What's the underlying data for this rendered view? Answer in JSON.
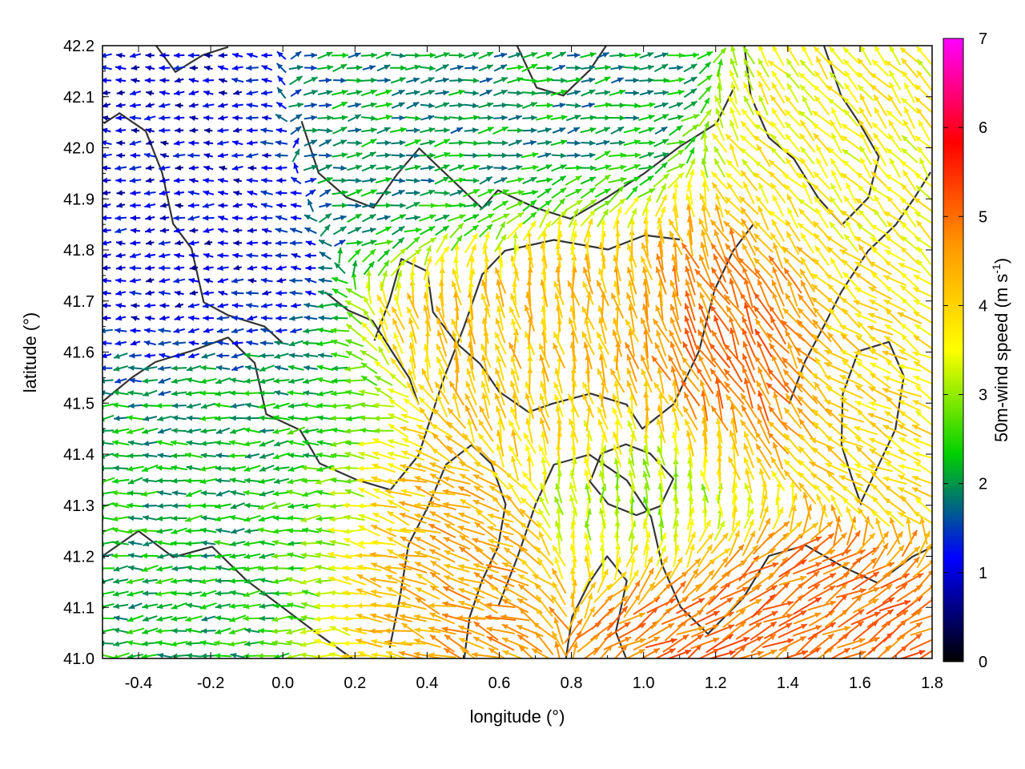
{
  "chart_data": {
    "type": "vector-field",
    "xlabel": "longitude (°)",
    "ylabel": "latitude (°)",
    "xlim": [
      -0.5,
      1.8
    ],
    "ylim": [
      41.0,
      42.2
    ],
    "xticks": [
      "-0.4",
      "-0.2",
      "0.0",
      "0.2",
      "0.4",
      "0.6",
      "0.8",
      "1.0",
      "1.2",
      "1.4",
      "1.6",
      "1.8"
    ],
    "yticks": [
      "41.0",
      "41.1",
      "41.2",
      "41.3",
      "41.4",
      "41.5",
      "41.6",
      "41.7",
      "41.8",
      "41.9",
      "42.0",
      "42.1",
      "42.2"
    ],
    "grid": true,
    "colorbar": {
      "label_main": "50m-wind speed (m s",
      "label_sup": "-1",
      "label_close": ")",
      "range": [
        0,
        7
      ],
      "ticks": [
        "0",
        "1",
        "2",
        "3",
        "4",
        "5",
        "6",
        "7"
      ],
      "stops": [
        "#000000",
        "#0000ff",
        "#00d000",
        "#ffff00",
        "#ff9900",
        "#ff0000",
        "#ff00ff"
      ]
    },
    "wind_regions": [
      {
        "lon": [
          -0.5,
          0.0
        ],
        "lat": [
          41.6,
          42.2
        ],
        "speed": 1.0,
        "direction_deg": 180
      },
      {
        "lon": [
          -0.5,
          0.3
        ],
        "lat": [
          41.0,
          41.6
        ],
        "speed": 2.2,
        "direction_deg": 185
      },
      {
        "lon": [
          0.0,
          1.0
        ],
        "lat": [
          41.85,
          42.2
        ],
        "speed": 2.0,
        "direction_deg": 10
      },
      {
        "lon": [
          0.1,
          0.7
        ],
        "lat": [
          41.0,
          41.4
        ],
        "speed": 4.6,
        "direction_deg": 160
      },
      {
        "lon": [
          0.4,
          1.1
        ],
        "lat": [
          41.4,
          41.85
        ],
        "speed": 4.2,
        "direction_deg": 100
      },
      {
        "lon": [
          1.0,
          1.5
        ],
        "lat": [
          41.4,
          41.8
        ],
        "speed": 5.0,
        "direction_deg": 120
      },
      {
        "lon": [
          0.7,
          1.3
        ],
        "lat": [
          41.2,
          41.45
        ],
        "speed": 3.0,
        "direction_deg": 90
      },
      {
        "lon": [
          0.9,
          1.8
        ],
        "lat": [
          41.0,
          41.2
        ],
        "speed": 5.0,
        "direction_deg": 30
      },
      {
        "lon": [
          1.3,
          1.8
        ],
        "lat": [
          41.8,
          42.1
        ],
        "speed": 3.6,
        "direction_deg": 130
      },
      {
        "lon": [
          1.5,
          1.8
        ],
        "lat": [
          41.3,
          41.8
        ],
        "speed": 3.8,
        "direction_deg": 150
      }
    ]
  }
}
